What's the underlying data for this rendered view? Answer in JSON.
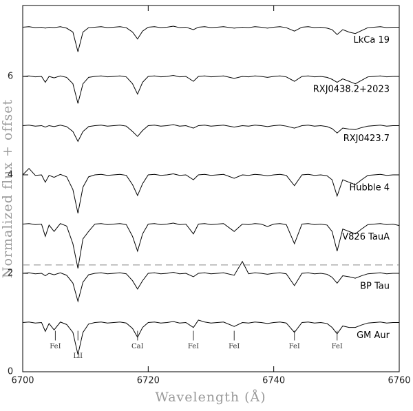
{
  "chart_data": {
    "type": "line",
    "xlabel": "Wavelength (Å)",
    "ylabel": "Normalized flux + offset",
    "xlim": [
      6700,
      6760
    ],
    "xticks": [
      6700,
      6720,
      6740,
      6760
    ],
    "ylim": [
      0,
      7.44
    ],
    "yticks": [
      0,
      2,
      4,
      6
    ],
    "x": [
      6700,
      6701,
      6702,
      6703,
      6703.6,
      6704.2,
      6705,
      6706,
      6707,
      6708,
      6708.8,
      6709.6,
      6710.5,
      6711.5,
      6712.5,
      6713.5,
      6714.5,
      6715.5,
      6716.5,
      6717.5,
      6718.3,
      6719.1,
      6720,
      6721,
      6722,
      6723,
      6724,
      6725,
      6726,
      6727.2,
      6728,
      6729,
      6730,
      6731,
      6732,
      6733.7,
      6735,
      6736,
      6737,
      6738,
      6739,
      6740,
      6741,
      6742,
      6743.3,
      6744.5,
      6745.5,
      6746.5,
      6747.5,
      6748.5,
      6749.3,
      6750.1,
      6751,
      6752,
      6753,
      6754,
      6755,
      6756,
      6757,
      6758,
      6759,
      6760
    ],
    "series": [
      {
        "name": "LkCa 19",
        "color": "#000000",
        "values": [
          7.0,
          7.01,
          6.99,
          7.0,
          6.98,
          7.0,
          6.99,
          7.01,
          6.98,
          6.9,
          6.5,
          6.9,
          6.99,
          7.0,
          7.01,
          6.99,
          7.0,
          7.01,
          6.99,
          6.9,
          6.76,
          6.92,
          7.0,
          7.01,
          6.99,
          7.0,
          7.02,
          6.99,
          7.0,
          6.95,
          7.0,
          7.01,
          6.99,
          7.0,
          7.01,
          6.98,
          7.0,
          6.99,
          7.01,
          7.0,
          6.98,
          7.0,
          7.01,
          6.99,
          6.92,
          7.0,
          7.01,
          6.99,
          7.0,
          6.98,
          6.95,
          6.85,
          6.95,
          6.9,
          6.87,
          6.93,
          6.99,
          7.0,
          7.01,
          6.99,
          7.0,
          7.0
        ]
      },
      {
        "name": "RXJ0438.2+2023",
        "color": "#000000",
        "values": [
          6.0,
          6.01,
          5.99,
          6.0,
          5.88,
          6.0,
          5.97,
          6.01,
          5.98,
          5.85,
          5.45,
          5.85,
          5.98,
          6.0,
          6.01,
          5.99,
          6.0,
          6.01,
          5.99,
          5.85,
          5.64,
          5.88,
          6.0,
          6.01,
          5.99,
          6.0,
          6.02,
          5.99,
          6.0,
          5.9,
          6.0,
          6.01,
          5.99,
          6.0,
          6.01,
          5.96,
          6.0,
          5.99,
          6.01,
          6.0,
          5.98,
          6.0,
          6.01,
          5.99,
          5.9,
          6.0,
          6.01,
          5.99,
          6.0,
          5.98,
          5.94,
          5.88,
          5.95,
          5.9,
          5.85,
          5.92,
          5.99,
          6.0,
          6.01,
          5.99,
          6.0,
          6.0
        ]
      },
      {
        "name": "RXJ0423.7",
        "color": "#000000",
        "values": [
          5.0,
          5.01,
          4.99,
          5.0,
          4.97,
          5.0,
          4.98,
          5.01,
          4.98,
          4.88,
          4.68,
          4.88,
          4.98,
          5.0,
          5.01,
          4.99,
          5.0,
          5.01,
          4.99,
          4.88,
          4.78,
          4.9,
          5.0,
          5.01,
          4.99,
          5.0,
          5.02,
          4.99,
          5.0,
          4.95,
          5.0,
          5.01,
          4.99,
          5.0,
          5.01,
          4.97,
          5.0,
          4.99,
          5.01,
          5.0,
          4.98,
          5.0,
          5.01,
          4.99,
          4.95,
          5.0,
          5.01,
          4.99,
          5.0,
          4.98,
          4.94,
          4.85,
          4.95,
          4.93,
          4.92,
          4.96,
          4.99,
          5.0,
          5.01,
          4.99,
          5.0,
          5.0
        ]
      },
      {
        "name": "Hubble 4",
        "color": "#000000",
        "values": [
          4.0,
          4.13,
          3.99,
          4.0,
          3.85,
          3.99,
          3.95,
          4.01,
          3.96,
          3.7,
          3.22,
          3.75,
          3.96,
          4.0,
          4.01,
          3.99,
          4.0,
          4.01,
          3.99,
          3.8,
          3.58,
          3.82,
          4.0,
          4.01,
          3.99,
          4.0,
          4.02,
          3.99,
          4.0,
          3.9,
          4.0,
          4.01,
          3.99,
          4.0,
          4.01,
          3.93,
          4.0,
          3.99,
          4.01,
          4.0,
          3.98,
          4.0,
          4.01,
          3.99,
          3.78,
          4.0,
          4.01,
          3.99,
          4.0,
          3.98,
          3.9,
          3.57,
          3.9,
          3.85,
          3.8,
          3.9,
          3.99,
          4.0,
          4.01,
          3.99,
          4.0,
          4.0
        ]
      },
      {
        "name": "V826 TauA",
        "color": "#000000",
        "values": [
          3.0,
          3.01,
          2.99,
          3.0,
          2.75,
          2.98,
          2.85,
          3.01,
          2.96,
          2.6,
          2.1,
          2.7,
          2.85,
          3.0,
          3.01,
          2.99,
          3.0,
          3.01,
          2.99,
          2.75,
          2.45,
          2.8,
          3.0,
          3.01,
          2.99,
          3.0,
          3.02,
          2.99,
          3.0,
          2.8,
          3.0,
          3.01,
          2.99,
          3.0,
          3.01,
          2.85,
          3.0,
          2.99,
          3.01,
          3.0,
          2.95,
          3.0,
          3.01,
          2.99,
          2.6,
          3.0,
          3.01,
          2.99,
          3.0,
          2.98,
          2.85,
          2.45,
          2.9,
          2.85,
          2.8,
          2.9,
          2.99,
          3.0,
          3.01,
          2.99,
          3.0,
          2.97
        ]
      },
      {
        "name": "BP Tau",
        "color": "#000000",
        "values": [
          2.0,
          2.01,
          1.99,
          2.0,
          1.95,
          2.0,
          1.97,
          2.01,
          1.96,
          1.8,
          1.43,
          1.82,
          1.97,
          2.0,
          2.01,
          1.99,
          2.0,
          2.01,
          1.99,
          1.85,
          1.68,
          1.85,
          2.0,
          2.01,
          1.99,
          2.0,
          2.02,
          1.99,
          2.0,
          1.93,
          2.0,
          2.01,
          1.99,
          2.0,
          2.01,
          1.96,
          2.24,
          1.99,
          2.01,
          2.0,
          1.98,
          2.0,
          2.01,
          1.99,
          1.75,
          2.0,
          2.01,
          1.99,
          2.0,
          1.98,
          1.92,
          1.8,
          1.95,
          1.93,
          1.9,
          1.95,
          1.99,
          2.0,
          2.01,
          1.99,
          2.0,
          2.0
        ]
      },
      {
        "name": "GM Aur",
        "color": "#000000",
        "values": [
          1.0,
          1.01,
          0.99,
          1.0,
          0.82,
          0.98,
          0.85,
          1.01,
          0.96,
          0.8,
          0.35,
          0.8,
          0.97,
          1.0,
          1.01,
          0.99,
          1.0,
          1.01,
          0.99,
          0.88,
          0.7,
          0.9,
          1.0,
          1.01,
          0.99,
          1.0,
          1.02,
          0.99,
          1.0,
          0.9,
          1.05,
          1.01,
          0.99,
          1.0,
          1.01,
          0.92,
          1.0,
          0.99,
          1.01,
          1.0,
          0.98,
          1.0,
          1.01,
          0.99,
          0.8,
          1.0,
          1.01,
          0.99,
          1.0,
          0.98,
          0.9,
          0.77,
          0.93,
          0.9,
          0.9,
          0.95,
          0.99,
          1.0,
          1.01,
          0.99,
          1.0,
          1.0
        ]
      }
    ],
    "reference_line": {
      "y": 2.17,
      "color": "#888888"
    },
    "annotations": [
      {
        "text": "FeI",
        "x": 6705.2
      },
      {
        "text": "LiI",
        "x": 6708.8
      },
      {
        "text": "CaI",
        "x": 6718.3
      },
      {
        "text": "FeI",
        "x": 6727.2
      },
      {
        "text": "FeI",
        "x": 6733.7
      },
      {
        "text": "FeI",
        "x": 6743.3
      },
      {
        "text": "FeI",
        "x": 6750.1
      }
    ]
  }
}
